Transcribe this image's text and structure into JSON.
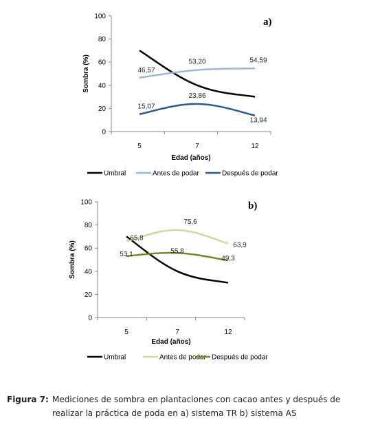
{
  "chart_data": [
    {
      "type": "line",
      "panel_label": "a)",
      "categories": [
        "5",
        "7",
        "12"
      ],
      "xlabel": "Edad (años)",
      "ylabel": "Sombra (%)",
      "ylim": [
        0,
        100
      ],
      "yticks": [
        "0",
        "20",
        "40",
        "60",
        "80",
        "100"
      ],
      "legend_position": "bottom",
      "series": [
        {
          "name": "Umbral",
          "values": [
            70,
            40,
            30
          ],
          "labels": [
            "",
            "",
            ""
          ],
          "color": "#000000"
        },
        {
          "name": "Antes de podar",
          "values": [
            46.57,
            53.2,
            54.59
          ],
          "labels": [
            "46,57",
            "53,20",
            "54,59"
          ],
          "color": "#9bb7d8"
        },
        {
          "name": "Después de podar",
          "values": [
            15.07,
            23.86,
            13.94
          ],
          "labels": [
            "15,07",
            "23,86",
            "13,94"
          ],
          "color": "#2f5a8a"
        }
      ]
    },
    {
      "type": "line",
      "panel_label": "b)",
      "categories": [
        "5",
        "7",
        "12"
      ],
      "xlabel": "Edad (años)",
      "ylabel": "Sombra (%)",
      "ylim": [
        0,
        100
      ],
      "yticks": [
        "0",
        "20",
        "40",
        "60",
        "80",
        "100"
      ],
      "legend_position": "bottom",
      "series": [
        {
          "name": "Umbral",
          "values": [
            70,
            40,
            30
          ],
          "labels": [
            "",
            "",
            ""
          ],
          "color": "#000000"
        },
        {
          "name": "Antes de podar",
          "values": [
            65.8,
            75.6,
            63.9
          ],
          "labels": [
            "65,8",
            "75,6",
            "63,9"
          ],
          "color": "#c5dca0"
        },
        {
          "name": "Después de podar",
          "values": [
            53.1,
            55.8,
            49.3
          ],
          "labels": [
            "53,1",
            "55,8",
            "49,3"
          ],
          "color": "#6e8b2e"
        }
      ]
    }
  ],
  "caption": {
    "label": "Figura 7:",
    "text": "Mediciones de sombra en plantaciones con cacao antes y después de realizar la práctica de poda en a) sistema TR b) sistema AS"
  }
}
